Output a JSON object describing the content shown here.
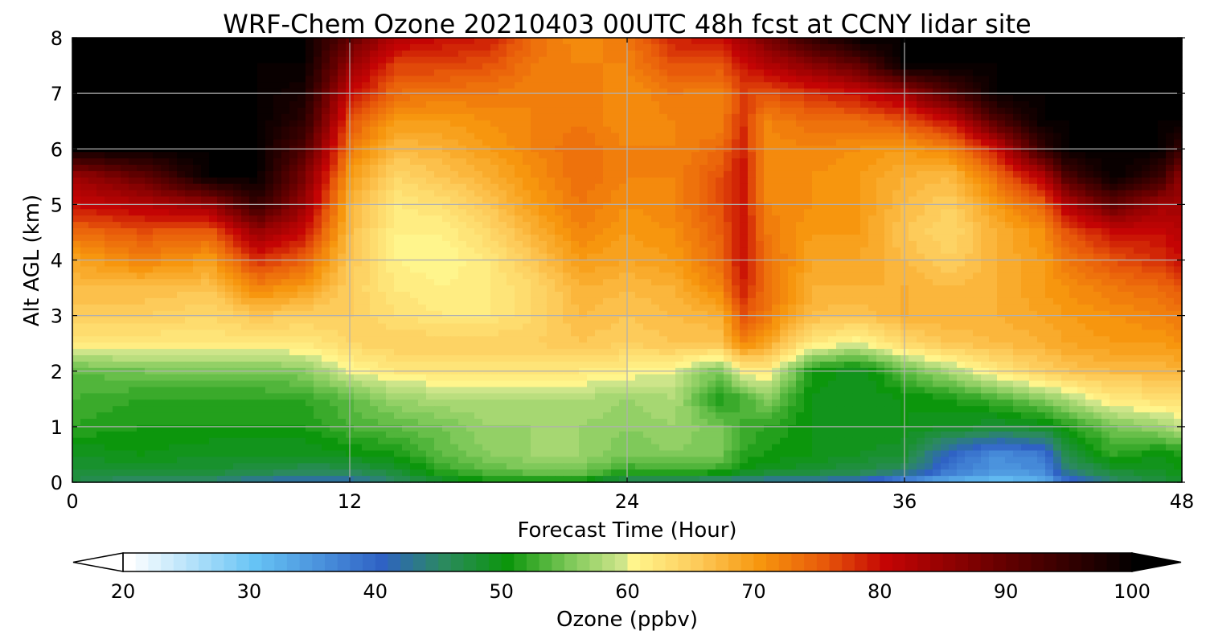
{
  "chart_data": {
    "type": "heatmap",
    "title": "WRF-Chem Ozone  20210403 00UTC 48h fcst at CCNY lidar site",
    "xlabel": "Forecast Time (Hour)",
    "ylabel": "Alt AGL (km)",
    "xlim": [
      0,
      48
    ],
    "ylim": [
      0,
      8
    ],
    "xticks": [
      0,
      12,
      24,
      36,
      48
    ],
    "yticks": [
      0,
      1,
      2,
      3,
      4,
      5,
      6,
      7,
      8
    ],
    "grid": true,
    "x": [
      0,
      3,
      6,
      8,
      10,
      12,
      14,
      16,
      18,
      20,
      22,
      24,
      26,
      28,
      29,
      30,
      32,
      34,
      36,
      38,
      40,
      42,
      43,
      45,
      47,
      48
    ],
    "y": [
      0,
      0.2,
      0.5,
      1,
      1.5,
      2,
      2.5,
      3,
      3.5,
      4,
      4.5,
      5,
      5.5,
      6,
      6.5,
      7,
      7.5,
      8
    ],
    "z": [
      [
        47,
        44,
        44,
        42,
        41,
        41,
        45,
        48,
        50,
        50,
        50,
        45,
        44,
        43,
        42,
        42,
        42,
        40,
        35,
        32,
        30,
        32,
        38,
        45,
        47,
        48
      ],
      [
        48,
        48,
        48,
        47,
        46,
        46,
        48,
        52,
        54,
        55,
        55,
        52,
        53,
        52,
        50,
        49,
        48,
        47,
        45,
        38,
        35,
        36,
        44,
        48,
        49,
        50
      ],
      [
        49,
        50,
        49,
        49,
        49,
        50,
        51,
        54,
        56,
        57,
        57,
        55,
        56,
        55,
        52,
        51,
        50,
        49,
        48,
        40,
        36,
        38,
        47,
        52,
        50,
        51
      ],
      [
        52,
        51,
        51,
        51,
        51,
        53,
        54,
        55,
        57,
        57,
        57,
        56,
        57,
        55,
        53,
        52,
        50,
        50,
        50,
        49,
        48,
        49,
        51,
        55,
        57,
        59
      ],
      [
        53,
        52,
        52,
        52,
        52,
        54,
        57,
        58,
        58,
        58,
        58,
        57,
        58,
        51,
        53,
        56,
        50,
        49,
        50,
        51,
        53,
        56,
        58,
        62,
        63,
        63
      ],
      [
        54,
        55,
        55,
        55,
        56,
        60,
        62,
        62,
        62,
        62,
        62,
        61,
        60,
        55,
        61,
        62,
        51,
        49,
        54,
        58,
        62,
        65,
        66,
        67,
        67,
        68
      ],
      [
        62,
        62,
        62,
        62,
        62,
        64,
        65,
        65,
        65,
        65,
        66,
        65,
        66,
        66,
        72,
        69,
        62,
        60,
        64,
        66,
        67,
        68,
        69,
        70,
        70,
        71
      ],
      [
        65,
        65,
        64,
        66,
        65,
        65,
        63,
        62,
        62,
        64,
        67,
        66,
        67,
        68,
        76,
        73,
        67,
        66,
        68,
        68,
        68,
        69,
        70,
        71,
        72,
        73
      ],
      [
        67,
        67,
        66,
        72,
        70,
        65,
        62,
        61,
        62,
        64,
        68,
        67,
        68,
        72,
        79,
        74,
        68,
        68,
        68,
        67,
        68,
        70,
        71,
        73,
        74,
        76
      ],
      [
        69,
        72,
        70,
        78,
        75,
        66,
        61,
        60,
        62,
        66,
        70,
        69,
        70,
        74,
        80,
        74,
        69,
        69,
        67,
        65,
        68,
        70,
        73,
        76,
        78,
        80
      ],
      [
        74,
        76,
        75,
        85,
        80,
        67,
        61,
        61,
        64,
        68,
        72,
        70,
        71,
        75,
        80,
        73,
        70,
        70,
        66,
        64,
        68,
        71,
        76,
        80,
        80,
        82
      ],
      [
        80,
        82,
        85,
        95,
        85,
        68,
        62,
        63,
        66,
        70,
        73,
        71,
        72,
        76,
        80,
        72,
        71,
        70,
        67,
        65,
        70,
        75,
        82,
        90,
        84,
        84
      ],
      [
        84,
        90,
        100,
        100,
        88,
        70,
        64,
        66,
        68,
        71,
        74,
        72,
        72,
        76,
        80,
        71,
        71,
        70,
        68,
        67,
        74,
        82,
        92,
        100,
        95,
        85
      ],
      [
        100,
        100,
        100,
        100,
        92,
        73,
        67,
        68,
        70,
        72,
        74,
        72,
        72,
        74,
        79,
        71,
        72,
        71,
        70,
        72,
        80,
        95,
        100,
        100,
        100,
        95
      ],
      [
        100,
        100,
        100,
        100,
        96,
        76,
        70,
        70,
        71,
        72,
        73,
        71,
        72,
        72,
        78,
        72,
        74,
        74,
        76,
        80,
        92,
        100,
        100,
        100,
        100,
        100
      ],
      [
        100,
        100,
        100,
        100,
        98,
        80,
        74,
        73,
        73,
        72,
        73,
        71,
        73,
        72,
        77,
        76,
        78,
        80,
        84,
        92,
        100,
        100,
        100,
        100,
        100,
        100
      ],
      [
        100,
        100,
        100,
        100,
        100,
        85,
        77,
        77,
        76,
        73,
        72,
        72,
        76,
        76,
        79,
        82,
        86,
        90,
        100,
        100,
        100,
        100,
        100,
        100,
        100,
        100
      ],
      [
        100,
        100,
        100,
        100,
        100,
        90,
        82,
        80,
        79,
        74,
        71,
        73,
        79,
        80,
        84,
        88,
        95,
        100,
        100,
        100,
        100,
        100,
        100,
        100,
        100,
        100
      ]
    ],
    "colorbar": {
      "label": "Ozone  (ppbv)",
      "min": 20,
      "max": 100,
      "step": 1,
      "extend": "both",
      "ticks": [
        20,
        30,
        40,
        50,
        60,
        70,
        80,
        90,
        100
      ],
      "stops": [
        {
          "v": 20,
          "c": "#ffffff"
        },
        {
          "v": 30,
          "c": "#66c3f5"
        },
        {
          "v": 40,
          "c": "#2f62c4"
        },
        {
          "v": 45,
          "c": "#2b8a5e"
        },
        {
          "v": 50,
          "c": "#0c960c"
        },
        {
          "v": 55,
          "c": "#7fc95a"
        },
        {
          "v": 59,
          "c": "#cde58a"
        },
        {
          "v": 60,
          "c": "#fff58c"
        },
        {
          "v": 65,
          "c": "#fdcb5a"
        },
        {
          "v": 70,
          "c": "#f7960e"
        },
        {
          "v": 75,
          "c": "#e85a0a"
        },
        {
          "v": 80,
          "c": "#c40404"
        },
        {
          "v": 90,
          "c": "#5e0000"
        },
        {
          "v": 100,
          "c": "#000000"
        }
      ]
    }
  }
}
